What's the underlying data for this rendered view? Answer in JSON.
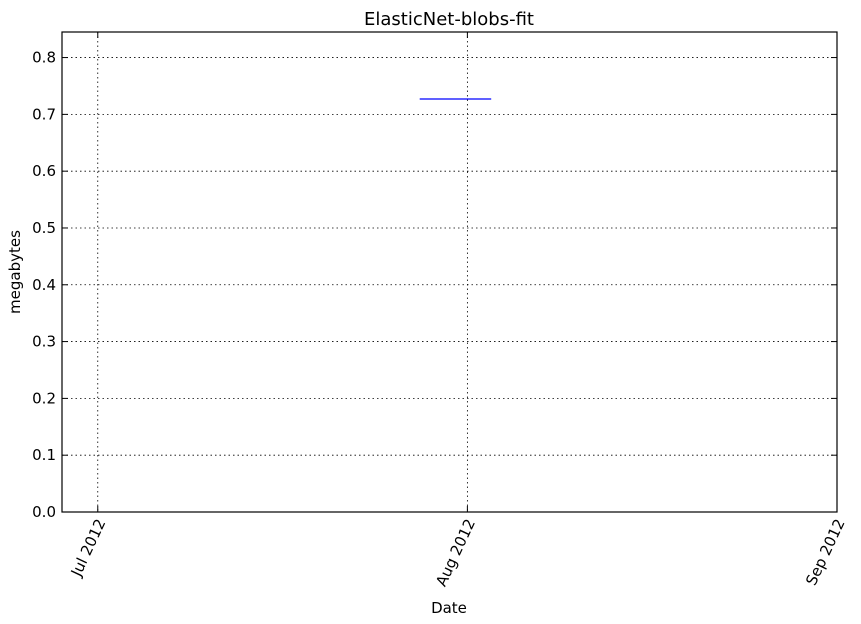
{
  "chart_data": {
    "type": "line",
    "title": "ElasticNet-blobs-fit",
    "xlabel": "Date",
    "ylabel": "megabytes",
    "x_ticks": [
      "Jul 2012",
      "Aug 2012",
      "Sep 2012"
    ],
    "x_tick_dates": [
      "2012-07-01",
      "2012-08-01",
      "2012-09-01"
    ],
    "xlim": [
      "2012-06-28",
      "2012-09-01"
    ],
    "ylim": [
      0,
      0.845
    ],
    "y_ticks": [
      "0.0",
      "0.1",
      "0.2",
      "0.3",
      "0.4",
      "0.5",
      "0.6",
      "0.7",
      "0.8"
    ],
    "grid": true,
    "series": [
      {
        "color": "#0000ff",
        "x": [
          "2012-07-28",
          "2012-08-03"
        ],
        "y": [
          0.727,
          0.727
        ]
      }
    ]
  }
}
